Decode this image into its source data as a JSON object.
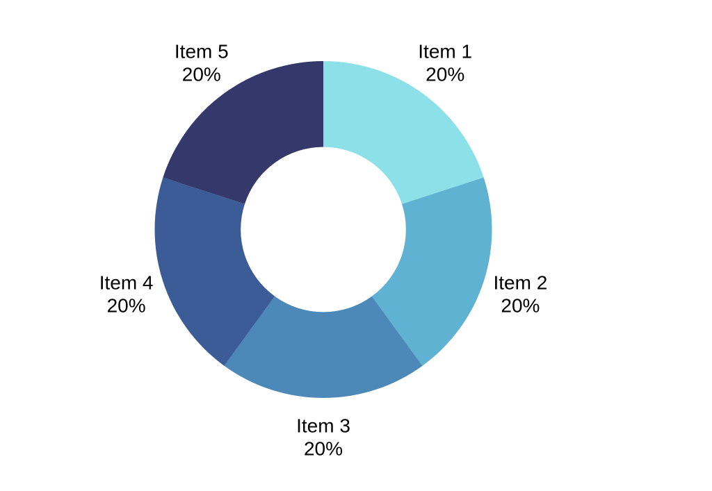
{
  "page": {
    "background_color": "#FFFFFF"
  },
  "chart_data": {
    "type": "pie",
    "variant": "donut",
    "title": "",
    "categories": [
      "Item 1",
      "Item 2",
      "Item 3",
      "Item 4",
      "Item 5"
    ],
    "values": [
      20,
      20,
      20,
      20,
      20
    ],
    "value_labels": [
      "20%",
      "20%",
      "20%",
      "20%",
      "20%"
    ],
    "unit": "%",
    "colors": [
      "#8CE1E8",
      "#60B2D2",
      "#4C88B8",
      "#3B5C97",
      "#34386A"
    ],
    "label_color": "#000000",
    "label_position": "outside",
    "legend": "none",
    "start_angle_deg": 0,
    "direction": "clockwise",
    "hole_ratio": 0.49,
    "background_color": "#FFFFFF"
  }
}
